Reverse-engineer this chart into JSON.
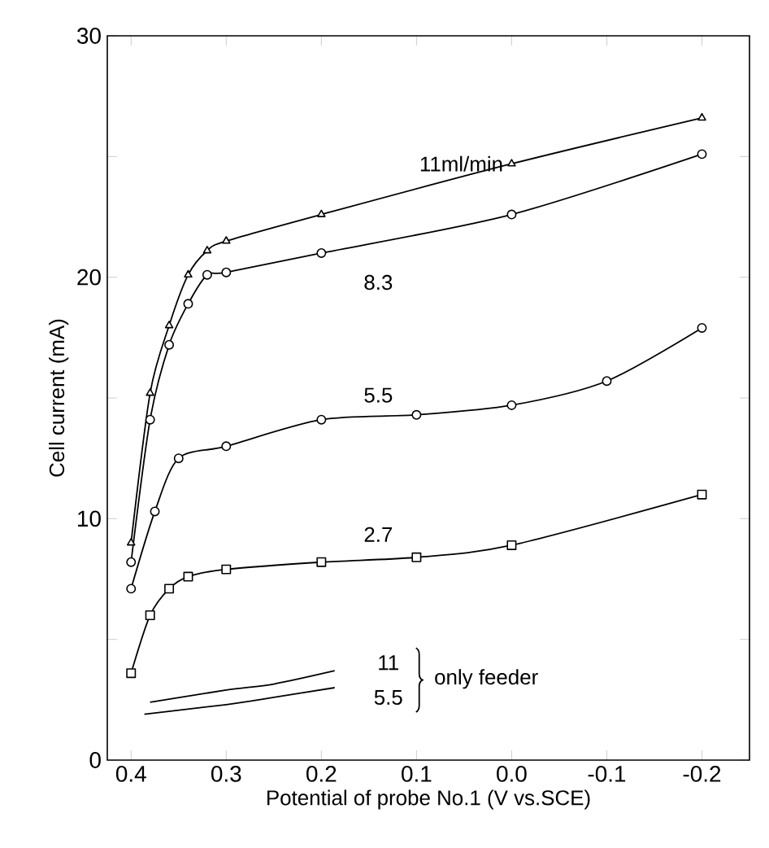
{
  "chart_data": {
    "type": "line",
    "xlabel": "Potential of probe No.1   (V vs.SCE)",
    "ylabel": "Cell current   (mA)",
    "xlim": [
      0.425,
      -0.25
    ],
    "ylim": [
      0,
      30
    ],
    "xticks": [
      0.4,
      0.3,
      0.2,
      0.1,
      {
        "value": 0,
        "label": "0.0"
      },
      -0.1,
      -0.2
    ],
    "yticks": [
      0,
      {
        "value": 5,
        "label": null
      },
      10,
      {
        "value": 15,
        "label": null
      },
      20,
      {
        "value": 25,
        "label": null
      },
      30
    ],
    "series": [
      {
        "name": "11ml/min",
        "color": "#000000",
        "marker": "triangle",
        "x": [
          0.4,
          0.38,
          0.36,
          0.34,
          0.32,
          0.3,
          0.2,
          0.0,
          -0.2
        ],
        "values": [
          9.0,
          15.2,
          18.0,
          20.1,
          21.1,
          21.5,
          22.6,
          24.7,
          26.6
        ]
      },
      {
        "name": "8.3",
        "color": "#000000",
        "marker": "circle",
        "x": [
          0.4,
          0.38,
          0.36,
          0.34,
          0.32,
          0.3,
          0.2,
          0.0,
          -0.2
        ],
        "values": [
          8.2,
          14.1,
          17.2,
          18.9,
          20.1,
          20.2,
          21.0,
          22.6,
          25.1
        ]
      },
      {
        "name": "5.5",
        "color": "#000000",
        "marker": "circle",
        "x": [
          0.4,
          0.375,
          0.35,
          0.3,
          0.2,
          0.1,
          0.0,
          -0.1,
          -0.2
        ],
        "values": [
          7.1,
          10.3,
          12.5,
          13.0,
          14.1,
          14.3,
          14.7,
          15.7,
          17.9
        ]
      },
      {
        "name": "2.7",
        "color": "#000000",
        "marker": "square",
        "x": [
          0.4,
          0.38,
          0.36,
          0.34,
          0.3,
          0.2,
          0.1,
          0.0,
          -0.2
        ],
        "values": [
          3.6,
          6.0,
          7.1,
          7.6,
          7.9,
          8.2,
          8.4,
          8.9,
          11.0
        ]
      },
      {
        "name": "11",
        "color": "#000000",
        "marker": "none",
        "x": [
          0.38,
          0.3,
          0.25,
          0.186
        ],
        "values": [
          2.4,
          2.9,
          3.15,
          3.7
        ]
      },
      {
        "name": "5.5",
        "color": "#000000",
        "marker": "none",
        "x": [
          0.386,
          0.3,
          0.25,
          0.186
        ],
        "values": [
          1.9,
          2.3,
          2.6,
          3.0
        ]
      }
    ],
    "annotations": [
      "only feeder"
    ]
  }
}
